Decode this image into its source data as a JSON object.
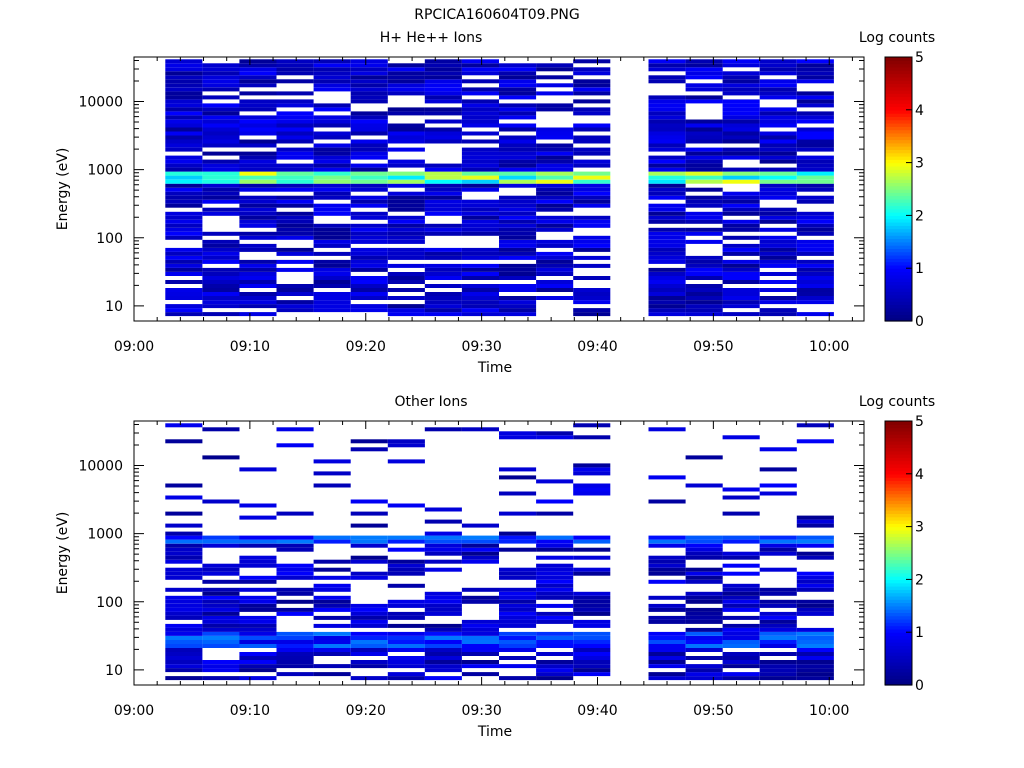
{
  "figure": {
    "title": "RPCICA160604T09.PNG"
  },
  "colorscale": {
    "stops": [
      "#000080",
      "#0000ff",
      "#00ffff",
      "#ffff00",
      "#ff0000",
      "#800000"
    ],
    "gap_color": "#ffffff"
  },
  "chart_data": [
    {
      "type": "heatmap",
      "title": "H+ He++ Ions",
      "xlabel": "Time",
      "ylabel": "Energy (eV)",
      "yscale": "log",
      "ylim": [
        6,
        45000
      ],
      "xlim_minutes_after_0900": [
        0,
        63
      ],
      "xticks": [
        "09:00",
        "09:10",
        "09:20",
        "09:30",
        "09:40",
        "09:50",
        "10:00"
      ],
      "yticks": [
        "10",
        "100",
        "1000",
        "10000"
      ],
      "colorbar": {
        "label": "Log counts",
        "range": [
          0,
          5
        ],
        "ticks": [
          "0",
          "1",
          "2",
          "3",
          "4",
          "5"
        ]
      },
      "time_bins_start_minutes": [
        2.7,
        5.9,
        9.1,
        12.3,
        15.5,
        18.7,
        21.9,
        25.1,
        28.3,
        31.5,
        34.7,
        37.9,
        44.4,
        47.6,
        50.8,
        54.0,
        57.2
      ],
      "bin_width_minutes": 3.2,
      "data_gap": {
        "start": "09:41",
        "end": "09:44"
      },
      "dominant_band": {
        "energy_eV": [
          650,
          1000
        ],
        "peak_log_counts": 3.0
      },
      "summary": "Broad low-level counts (log 0–1) 10 eV–40 keV with a bright band near 800 eV (log counts ~2–3) in every time bin except a data gap 09:41–09:44"
    },
    {
      "type": "heatmap",
      "title": "Other Ions",
      "xlabel": "Time",
      "ylabel": "Energy (eV)",
      "yscale": "log",
      "ylim": [
        6,
        45000
      ],
      "xlim_minutes_after_0900": [
        0,
        63
      ],
      "xticks": [
        "09:00",
        "09:10",
        "09:20",
        "09:30",
        "09:40",
        "09:50",
        "10:00"
      ],
      "yticks": [
        "10",
        "100",
        "1000",
        "10000"
      ],
      "colorbar": {
        "label": "Log counts",
        "range": [
          0,
          5
        ],
        "ticks": [
          "0",
          "1",
          "2",
          "3",
          "4",
          "5"
        ]
      },
      "time_bins_start_minutes": [
        2.7,
        5.9,
        9.1,
        12.3,
        15.5,
        18.7,
        21.9,
        25.1,
        28.3,
        31.5,
        34.7,
        37.9,
        44.4,
        47.6,
        50.8,
        54.0,
        57.2
      ],
      "bin_width_minutes": 3.2,
      "data_gap": {
        "start": "09:41",
        "end": "09:44"
      },
      "dominant_band": {
        "energy_eV": [
          700,
          950
        ],
        "peak_log_counts": 1.5
      },
      "secondary_band": {
        "energy_eV": [
          20,
          35
        ],
        "peak_log_counts": 1.5
      },
      "summary": "Sparse counts above 1 keV, band near 800 eV (log counts ~1–1.5), enhanced counts 10–40 eV, data gap 09:41–09:44"
    }
  ]
}
